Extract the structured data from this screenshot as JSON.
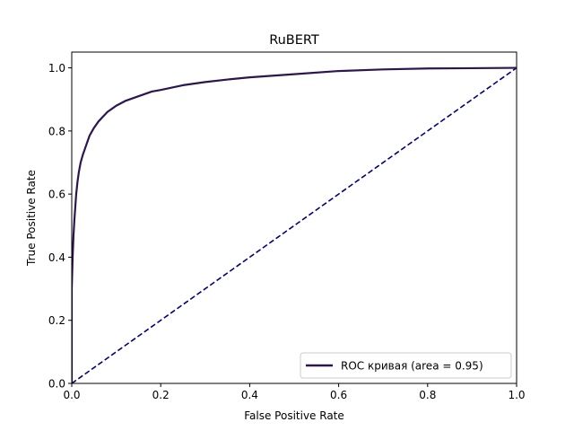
{
  "chart_data": {
    "type": "line",
    "title": "RuBERT",
    "xlabel": "False Positive Rate",
    "ylabel": "True Positive Rate",
    "xlim": [
      0.0,
      1.0
    ],
    "ylim": [
      0.0,
      1.05
    ],
    "x_ticks": [
      "0.0",
      "0.2",
      "0.4",
      "0.6",
      "0.8",
      "1.0"
    ],
    "y_ticks": [
      "0.0",
      "0.2",
      "0.4",
      "0.6",
      "0.8",
      "1.0"
    ],
    "grid": false,
    "legend_position": "lower-right",
    "series": [
      {
        "name": "ROC кривая (area = 0.95)",
        "color": "#2d1650",
        "style": "solid",
        "x": [
          0.0,
          0.0,
          0.002,
          0.004,
          0.006,
          0.008,
          0.01,
          0.013,
          0.016,
          0.02,
          0.025,
          0.03,
          0.035,
          0.04,
          0.05,
          0.06,
          0.07,
          0.08,
          0.1,
          0.12,
          0.15,
          0.18,
          0.2,
          0.25,
          0.3,
          0.35,
          0.4,
          0.5,
          0.6,
          0.7,
          0.8,
          0.9,
          1.0
        ],
        "y": [
          0.0,
          0.3,
          0.4,
          0.47,
          0.52,
          0.56,
          0.6,
          0.64,
          0.67,
          0.7,
          0.725,
          0.745,
          0.765,
          0.785,
          0.81,
          0.83,
          0.845,
          0.86,
          0.88,
          0.895,
          0.91,
          0.925,
          0.93,
          0.945,
          0.955,
          0.963,
          0.97,
          0.98,
          0.99,
          0.995,
          0.998,
          0.999,
          1.0
        ]
      },
      {
        "name": "",
        "color": "#00007f",
        "style": "dashed",
        "x": [
          0.0,
          1.0
        ],
        "y": [
          0.0,
          1.0
        ]
      }
    ]
  }
}
